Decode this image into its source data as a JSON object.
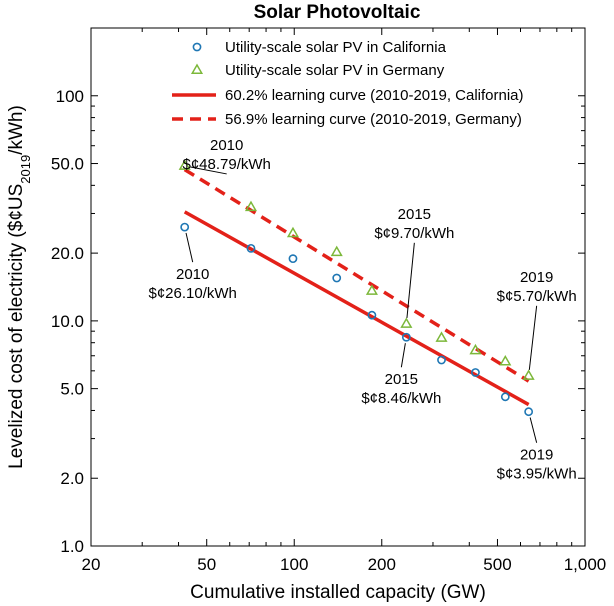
{
  "chart_data": {
    "type": "scatter",
    "title": "Solar Photovoltaic",
    "xlabel": "Cumulative installed capacity (GW)",
    "ylabel": {
      "pre": "Levelized cost of electricity ($¢US",
      "sub": "2019",
      "post": "/kWh)"
    },
    "xscale": "log",
    "yscale": "log",
    "xlim": [
      20,
      1000
    ],
    "ylim": [
      1,
      200
    ],
    "grid": false,
    "legend_position": "top-right",
    "x_ticks": [
      {
        "value": 20,
        "label": "20"
      },
      {
        "value": 50,
        "label": "50"
      },
      {
        "value": 100,
        "label": "100"
      },
      {
        "value": 200,
        "label": "200"
      },
      {
        "value": 500,
        "label": "500"
      },
      {
        "value": 1000,
        "label": "1,000"
      }
    ],
    "y_ticks": [
      {
        "value": 1,
        "label": "1.0"
      },
      {
        "value": 2,
        "label": "2.0"
      },
      {
        "value": 5,
        "label": "5.0"
      },
      {
        "value": 10,
        "label": "10.0"
      },
      {
        "value": 20,
        "label": "20.0"
      },
      {
        "value": 50,
        "label": "50.0"
      },
      {
        "value": 100,
        "label": "100"
      }
    ],
    "series": [
      {
        "name": "Utility-scale solar PV in California",
        "kind": "scatter",
        "marker": "circle",
        "color": "#1f77b4",
        "x": [
          42,
          71,
          99,
          140,
          185,
          243,
          321,
          420,
          532,
          640
        ],
        "y": [
          26.1,
          21.0,
          18.9,
          15.5,
          10.6,
          8.46,
          6.7,
          5.9,
          4.6,
          3.95
        ]
      },
      {
        "name": "Utility-scale solar PV in Germany",
        "kind": "scatter",
        "marker": "triangle",
        "color": "#7cb83a",
        "x": [
          42,
          71,
          99,
          140,
          185,
          243,
          321,
          420,
          532,
          640
        ],
        "y": [
          48.79,
          32.0,
          24.5,
          20.2,
          13.6,
          9.7,
          8.4,
          7.4,
          6.6,
          5.7
        ]
      },
      {
        "name": "60.2% learning curve (2010-2019, California)",
        "kind": "line",
        "style": "solid",
        "color": "#e32119",
        "x": [
          42,
          640
        ],
        "y": [
          30.5,
          4.25
        ]
      },
      {
        "name": "56.9% learning curve (2010-2019, Germany)",
        "kind": "line",
        "style": "dashed",
        "color": "#e32119",
        "x": [
          42,
          640
        ],
        "y": [
          47.0,
          5.4
        ]
      }
    ],
    "annotations": [
      {
        "id": "ger-2010",
        "year": "2010",
        "value": "$¢48.79/kWh",
        "x": 42,
        "y": 48.79,
        "dx": 42,
        "dy": -14,
        "anchor": "middle"
      },
      {
        "id": "cal-2010",
        "year": "2010",
        "value": "$¢26.10/kWh",
        "x": 42,
        "y": 26.1,
        "dx": 8,
        "dy": 52,
        "anchor": "middle"
      },
      {
        "id": "ger-2015",
        "year": "2015",
        "value": "$¢9.70/kWh",
        "x": 243,
        "y": 9.7,
        "dx": 8,
        "dy": -103,
        "anchor": "middle"
      },
      {
        "id": "cal-2015",
        "year": "2015",
        "value": "$¢8.46/kWh",
        "x": 243,
        "y": 8.46,
        "dx": -5,
        "dy": 47,
        "anchor": "middle"
      },
      {
        "id": "ger-2019",
        "year": "2019",
        "value": "$¢5.70/kWh",
        "x": 640,
        "y": 5.7,
        "dx": 8,
        "dy": -92,
        "anchor": "middle"
      },
      {
        "id": "cal-2019",
        "year": "2019",
        "value": "$¢3.95/kWh",
        "x": 640,
        "y": 3.95,
        "dx": 8,
        "dy": 48,
        "anchor": "middle"
      }
    ]
  }
}
